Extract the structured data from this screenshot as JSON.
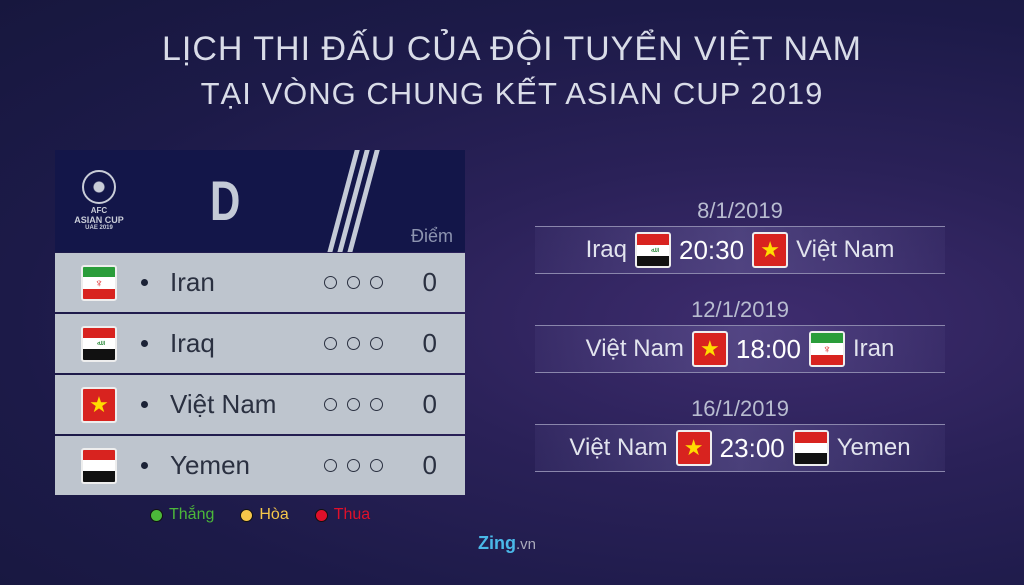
{
  "title": {
    "line1": "LỊCH THI ĐẤU CỦA ĐỘI TUYỂN VIỆT NAM",
    "line2": "TẠI VÒNG CHUNG KẾT ASIAN CUP 2019"
  },
  "group": {
    "logo": {
      "l1": "AFC",
      "l2": "ASIAN CUP",
      "l3": "UAE 2019"
    },
    "letter": "D",
    "points_header": "Điểm",
    "teams": [
      {
        "name": "Iran",
        "flag": "iran",
        "points": "0"
      },
      {
        "name": "Iraq",
        "flag": "iraq",
        "points": "0"
      },
      {
        "name": "Việt Nam",
        "flag": "vietnam",
        "points": "0"
      },
      {
        "name": "Yemen",
        "flag": "yemen",
        "points": "0"
      }
    ]
  },
  "legend": [
    {
      "label": "Thắng",
      "color": "#4cb83a"
    },
    {
      "label": "Hòa",
      "color": "#f5c64a"
    },
    {
      "label": "Thua",
      "color": "#e0102a"
    }
  ],
  "matches": [
    {
      "date": "8/1/2019",
      "home": "Iraq",
      "time": "20:30",
      "away": "Việt Nam"
    },
    {
      "date": "12/1/2019",
      "home": "Việt Nam",
      "time": "18:00",
      "away": "Iran"
    },
    {
      "date": "16/1/2019",
      "home": "Việt Nam",
      "time": "23:00",
      "away": "Yemen"
    }
  ],
  "brand": {
    "name": "Zing",
    "suffix": ".vn"
  }
}
